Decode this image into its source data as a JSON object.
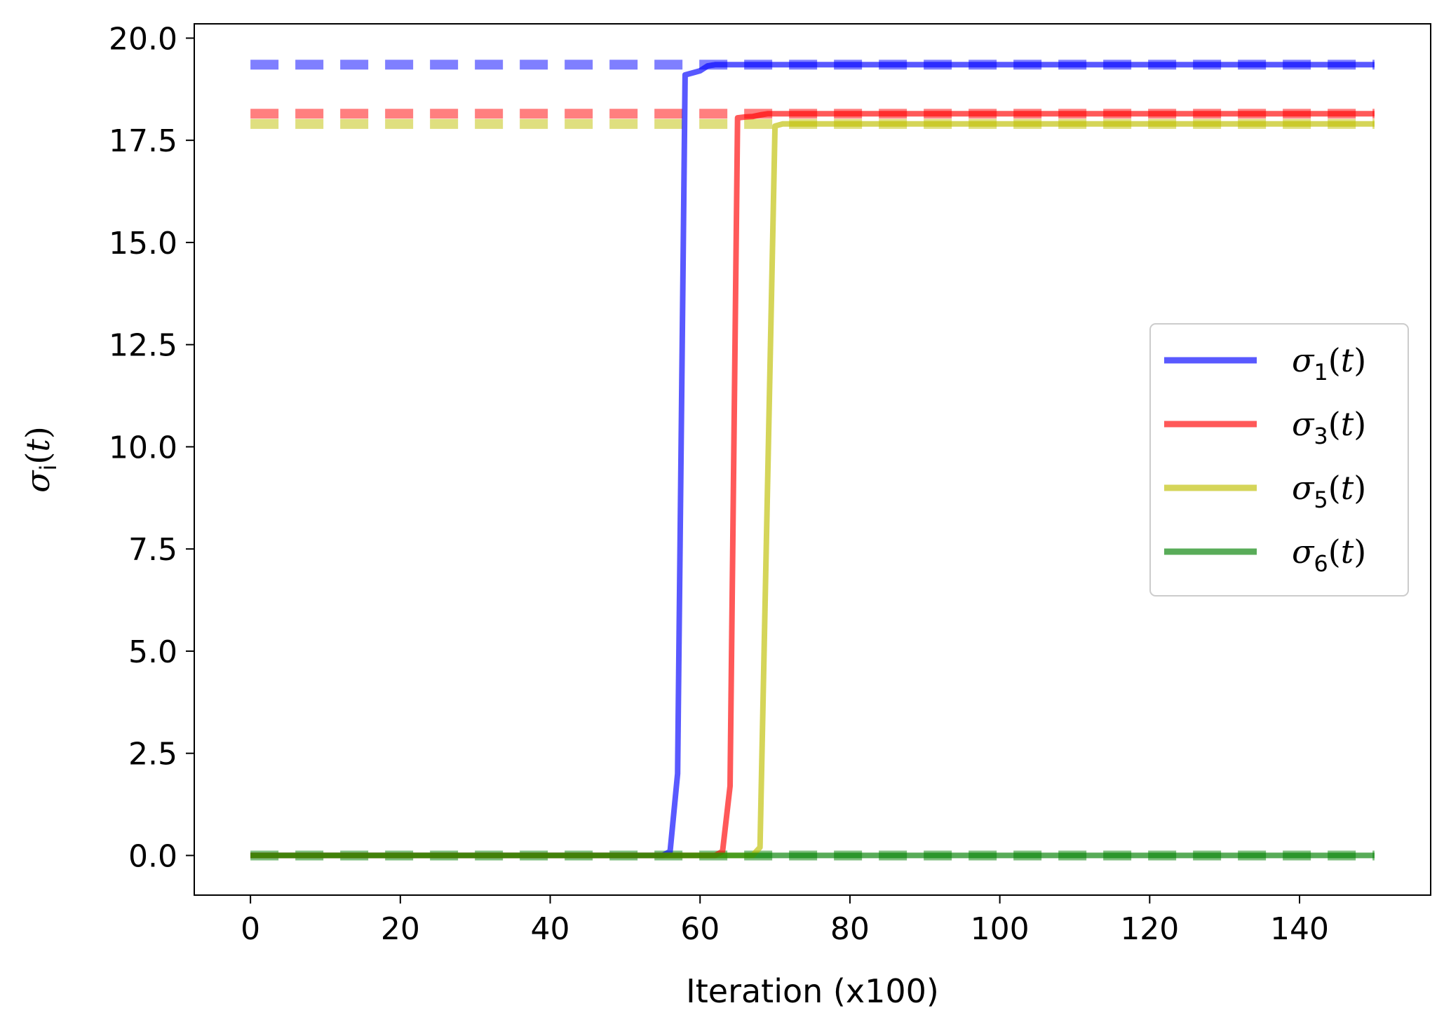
{
  "chart_data": {
    "type": "line",
    "xlabel": "Iteration (x100)",
    "ylabel_symbol": "σ",
    "ylabel_subscript": "i",
    "ylabel_arg": "t",
    "xlim": [
      -7.5,
      157.5
    ],
    "ylim": [
      -0.97,
      20.35
    ],
    "xticks": [
      0,
      20,
      40,
      60,
      80,
      100,
      120,
      140
    ],
    "xtick_labels": [
      "0",
      "20",
      "40",
      "60",
      "80",
      "100",
      "120",
      "140"
    ],
    "yticks": [
      0,
      2.5,
      5,
      7.5,
      10,
      12.5,
      15,
      17.5,
      20
    ],
    "ytick_labels": [
      "0.0",
      "2.5",
      "5.0",
      "7.5",
      "10.0",
      "12.5",
      "15.0",
      "17.5",
      "20.0"
    ],
    "grid": false,
    "legend_position": "center-right",
    "series": [
      {
        "name": "σ1(t)",
        "sym": "σ",
        "sub": "1",
        "arg": "t",
        "color": "#0000ff",
        "target": 19.35,
        "x": [
          0,
          55,
          56,
          57,
          58,
          59,
          60,
          61,
          62,
          150
        ],
        "y": [
          0.0,
          0.0,
          0.1,
          2.0,
          19.1,
          19.15,
          19.2,
          19.32,
          19.35,
          19.35
        ]
      },
      {
        "name": "σ3(t)",
        "sym": "σ",
        "sub": "3",
        "arg": "t",
        "color": "#ff0000",
        "target": 18.15,
        "x": [
          0,
          62,
          63,
          64,
          65,
          66,
          67,
          68,
          69,
          150
        ],
        "y": [
          0.0,
          0.0,
          0.1,
          1.7,
          18.05,
          18.07,
          18.08,
          18.12,
          18.15,
          18.15
        ]
      },
      {
        "name": "σ5(t)",
        "sym": "σ",
        "sub": "5",
        "arg": "t",
        "color": "#bfbf00",
        "target": 17.9,
        "x": [
          0,
          67,
          68,
          69,
          70,
          71,
          150
        ],
        "y": [
          0.0,
          0.0,
          0.2,
          9.0,
          17.85,
          17.9,
          17.9
        ]
      },
      {
        "name": "σ6(t)",
        "sym": "σ",
        "sub": "6",
        "arg": "t",
        "color": "#008000",
        "target": 0.0,
        "x": [
          0,
          150
        ],
        "y": [
          0.0,
          0.0
        ]
      }
    ]
  }
}
